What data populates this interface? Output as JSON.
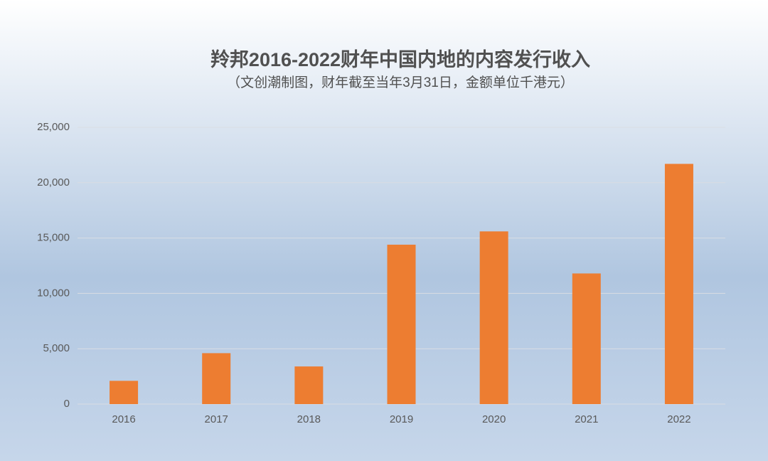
{
  "chart_data": {
    "type": "bar",
    "title": "羚邦2016-2022财年中国内地的内容发行收入",
    "subtitle": "（文创潮制图，财年截至当年3月31日，金额单位千港元）",
    "categories": [
      "2016",
      "2017",
      "2018",
      "2019",
      "2020",
      "2021",
      "2022"
    ],
    "values": [
      2100,
      4600,
      3400,
      14400,
      15600,
      11800,
      21700
    ],
    "color": "#ed7d31",
    "ylim": [
      0,
      25000
    ],
    "yticks": [
      0,
      {
        "value": 5000,
        "label": "5,000"
      },
      {
        "value": 10000,
        "label": "10,000"
      },
      {
        "value": 15000,
        "label": "15,000"
      },
      {
        "value": 20000,
        "label": "20,000"
      },
      {
        "value": 25000,
        "label": "25,000"
      }
    ],
    "grid": true
  }
}
